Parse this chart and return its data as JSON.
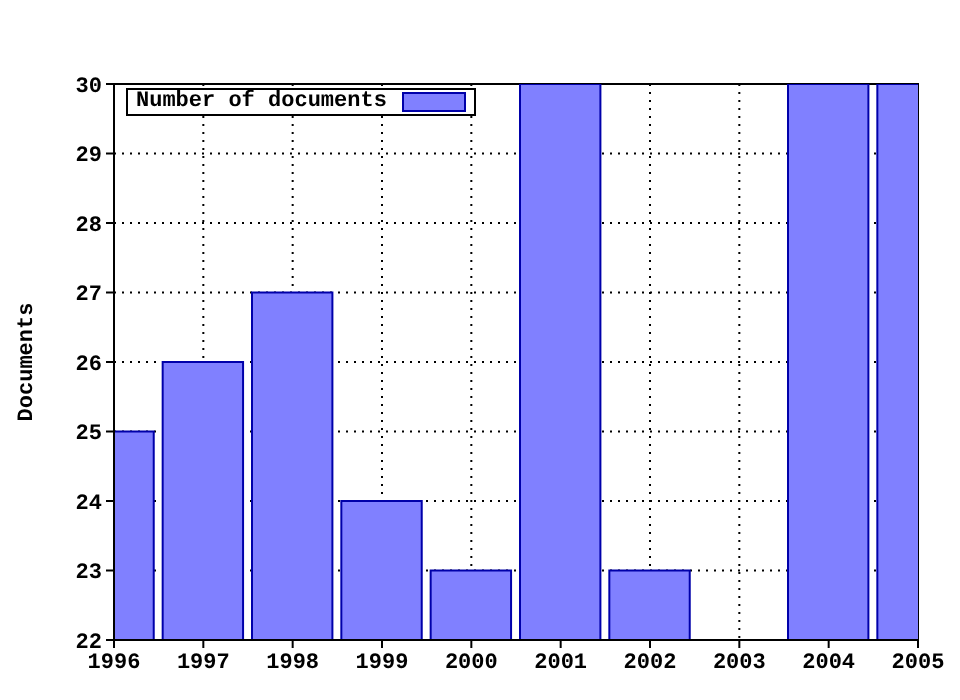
{
  "chart_data": {
    "type": "bar",
    "ylabel": "Documents",
    "x": [
      1996,
      1997,
      1998,
      1999,
      2000,
      2001,
      2002,
      2003,
      2004,
      2005
    ],
    "series": [
      {
        "name": "Number of documents",
        "color": "#8080ff",
        "values": [
          25,
          26,
          27,
          24,
          23,
          30,
          23,
          null,
          30,
          30
        ]
      }
    ],
    "xlim": [
      1996,
      2005
    ],
    "xticks": [
      1996,
      1997,
      1998,
      1999,
      2000,
      2001,
      2002,
      2003,
      2004,
      2005
    ],
    "ylim": [
      22,
      30
    ],
    "yticks": [
      22,
      23,
      24,
      25,
      26,
      27,
      28,
      29,
      30
    ],
    "grid": true,
    "legend": "top left"
  }
}
